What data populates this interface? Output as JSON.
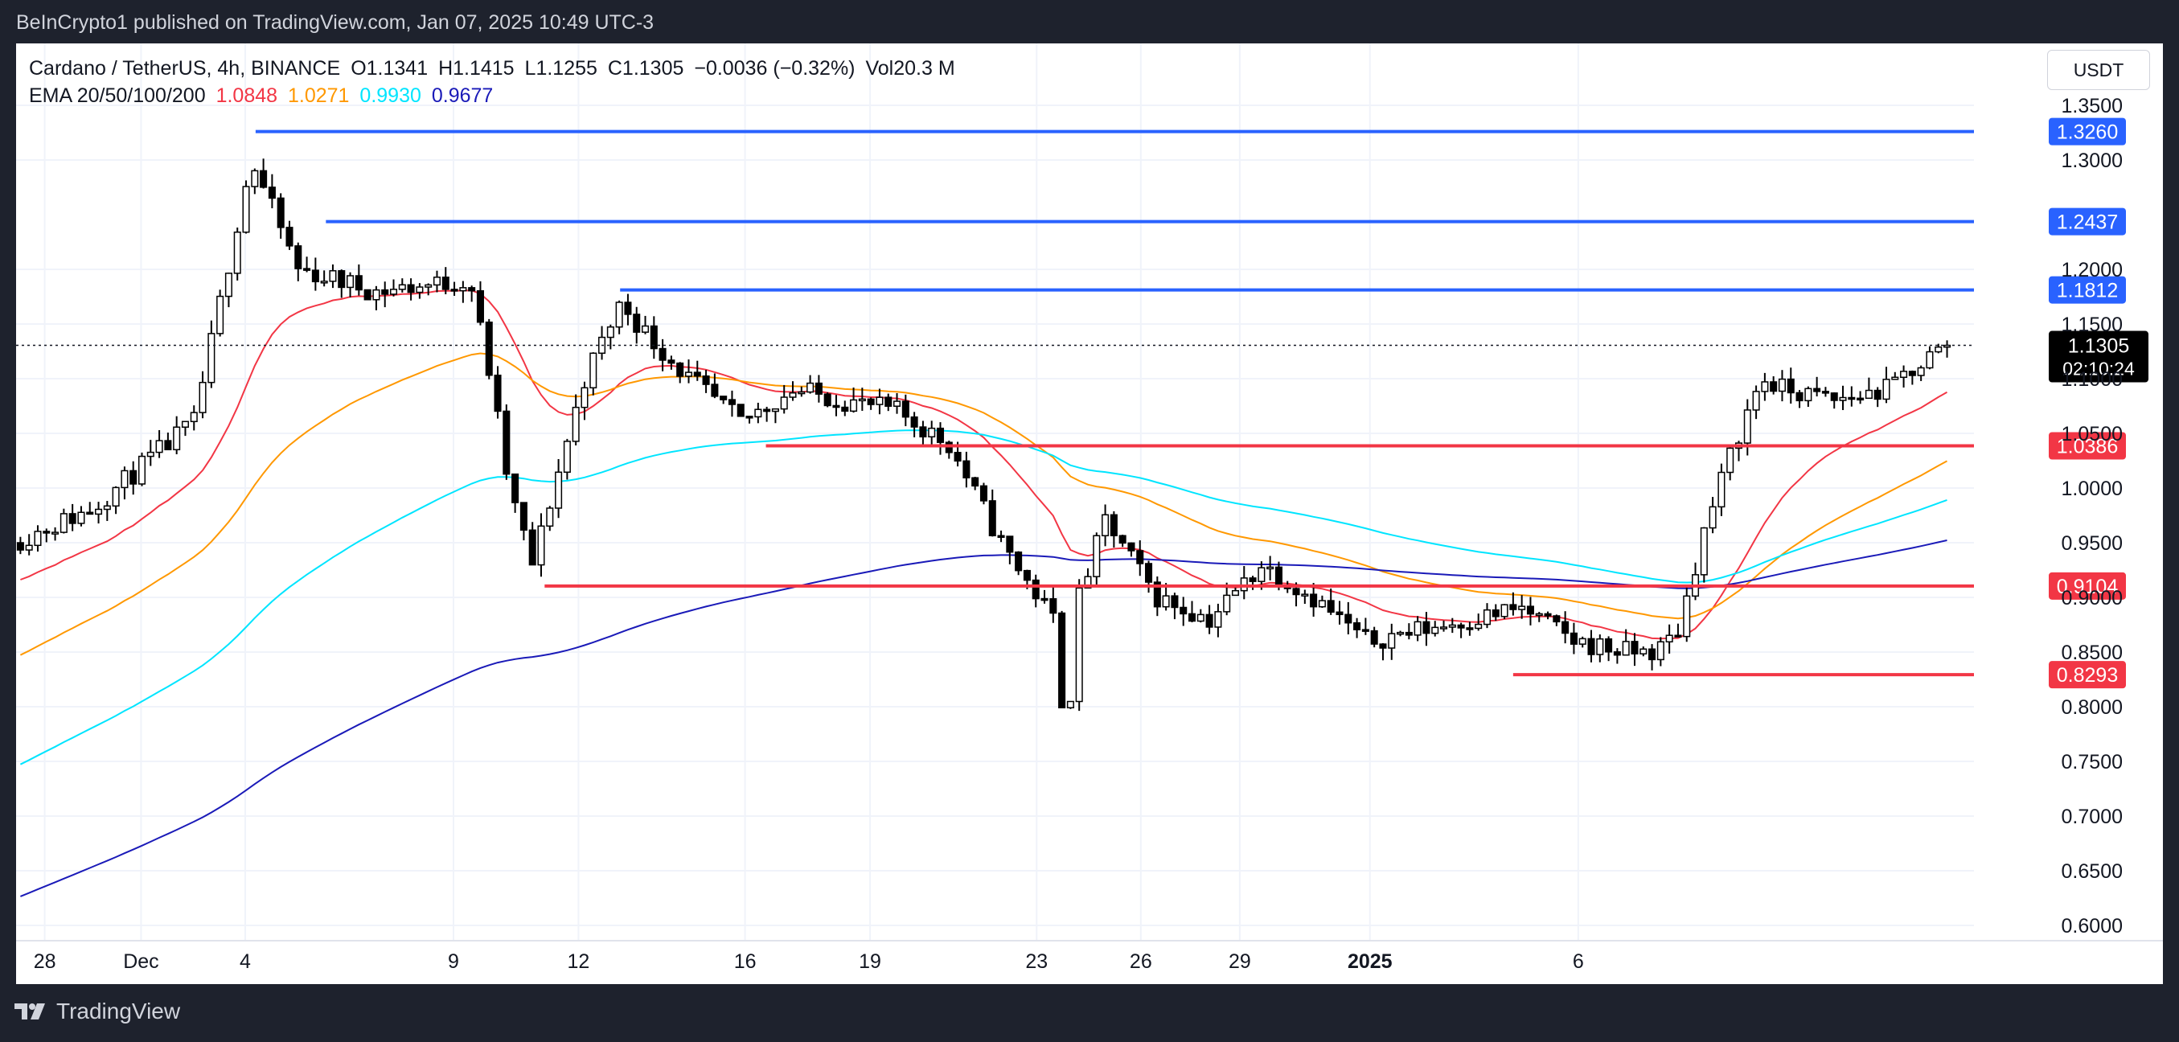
{
  "header": {
    "published_text": "BeInCrypto1 published on TradingView.com, Jan 07, 2025 10:49 UTC-3"
  },
  "legend": {
    "symbol": "Cardano / TetherUS, 4h, BINANCE",
    "open": "O1.1341",
    "high": "H1.1415",
    "low": "L1.1255",
    "close": "C1.1305",
    "change": "−0.0036 (−0.32%)",
    "volume": "Vol20.3 M",
    "ema_title": "EMA 20/50/100/200",
    "ema_values": [
      {
        "value": "1.0848",
        "color": "#f23645"
      },
      {
        "value": "1.0271",
        "color": "#ff9800"
      },
      {
        "value": "0.9930",
        "color": "#00e5ff"
      },
      {
        "value": "0.9677",
        "color": "#1a1ab8"
      }
    ]
  },
  "currency_button": "USDT",
  "footer": {
    "brand": "TradingView"
  },
  "colors": {
    "resistance": "#2962ff",
    "support": "#f23645",
    "ema20": "#f23645",
    "ema50": "#ff9800",
    "ema100": "#00e5ff",
    "ema200": "#1a1ab8"
  },
  "chart_data": {
    "type": "candlestick",
    "timeframe": "4h",
    "ylim": [
      0.6,
      1.35
    ],
    "y_ticks": [
      "1.3500",
      "1.3000",
      "1.2000",
      "1.1500",
      "1.1000",
      "1.0500",
      "1.0000",
      "0.9500",
      "0.9000",
      "0.8500",
      "0.8000",
      "0.7500",
      "0.7000",
      "0.6500",
      "0.6000"
    ],
    "x_ticks": [
      "28",
      "Dec",
      "4",
      "9",
      "12",
      "16",
      "19",
      "23",
      "26",
      "29",
      "2025",
      "6"
    ],
    "current_price": {
      "value": "1.1305",
      "countdown": "02:10:24"
    },
    "horizontal_levels": [
      {
        "value": "1.3260",
        "kind": "resistance"
      },
      {
        "value": "1.2437",
        "kind": "resistance"
      },
      {
        "value": "1.1812",
        "kind": "resistance"
      },
      {
        "value": "1.0386",
        "kind": "support"
      },
      {
        "value": "0.9104",
        "kind": "support"
      },
      {
        "value": "0.8293",
        "kind": "support"
      }
    ],
    "price_path_days": [
      0,
      1.5,
      3.5,
      4.6,
      5.5,
      7.0,
      8.8,
      9.2,
      9.55,
      10.0,
      11.0,
      11.7,
      12.2,
      13.0,
      14.0,
      15.0,
      16.0,
      17.0,
      18.0,
      19.0,
      20.0,
      20.25,
      20.5,
      21.0,
      22.0,
      23.0,
      24.0,
      25.0,
      26.0,
      27.0,
      28.0,
      29.0,
      30.0,
      31.0,
      31.6,
      32.0,
      32.5,
      33.0,
      33.6,
      34.0,
      35.0,
      36.0,
      36.8,
      37.2
    ],
    "price_path_values": [
      0.95,
      0.98,
      1.06,
      1.3,
      1.2,
      1.18,
      1.19,
      1.1,
      1.0,
      0.93,
      1.1,
      1.17,
      1.14,
      1.1,
      1.06,
      1.09,
      1.08,
      1.07,
      1.04,
      0.95,
      0.88,
      0.77,
      0.9,
      0.97,
      0.9,
      0.88,
      0.93,
      0.9,
      0.86,
      0.87,
      0.88,
      0.89,
      0.86,
      0.85,
      0.85,
      0.87,
      0.96,
      1.03,
      1.1,
      1.09,
      1.08,
      1.09,
      1.12,
      1.1305
    ],
    "ema_end_values": {
      "ema20": 1.0848,
      "ema50": 1.0271,
      "ema100": 0.993,
      "ema200": 0.9677
    }
  }
}
